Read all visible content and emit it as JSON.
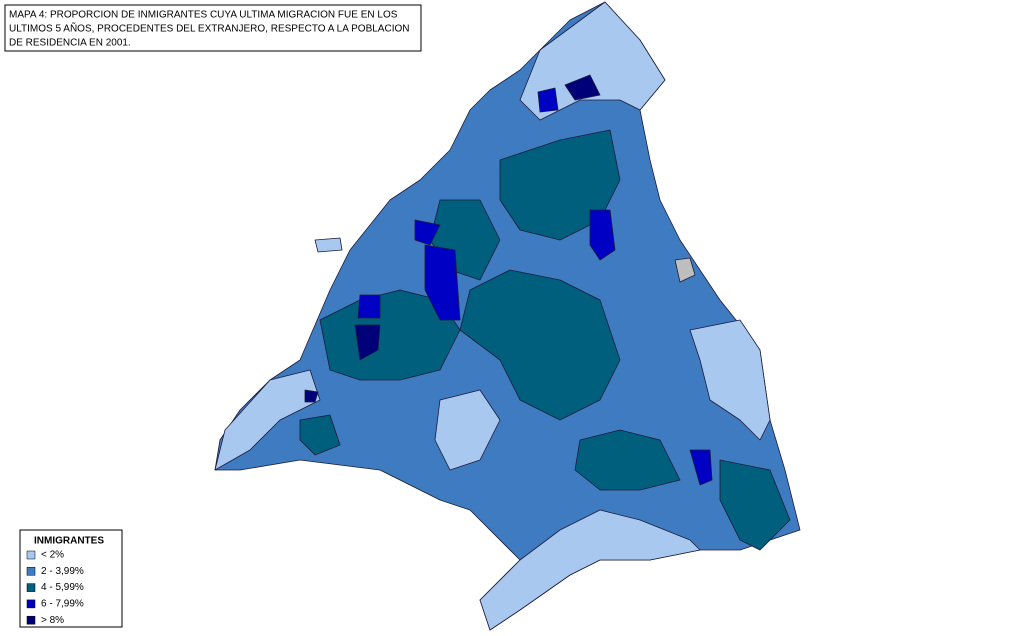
{
  "title_box": {
    "lines": [
      "MAPA 4: PROPORCION DE INMIGRANTES CUYA ULTIMA MIGRACION FUE EN LOS",
      "ULTIMOS 5 AÑOS, PROCEDENTES DEL EXTRANJERO, RESPECTO A LA POBLACION",
      "DE RESIDENCIA EN 2001."
    ]
  },
  "legend": {
    "title": "INMIGRANTES",
    "items": [
      {
        "label": "< 2%",
        "color": "#a8c8f0"
      },
      {
        "label": "2 - 3,99%",
        "color": "#3f7bc0"
      },
      {
        "label": "4 - 5,99%",
        "color": "#005f7c"
      },
      {
        "label": "6 - 7,99%",
        "color": "#0000c4"
      },
      {
        "label": "> 8%",
        "color": "#000078"
      }
    ]
  }
}
